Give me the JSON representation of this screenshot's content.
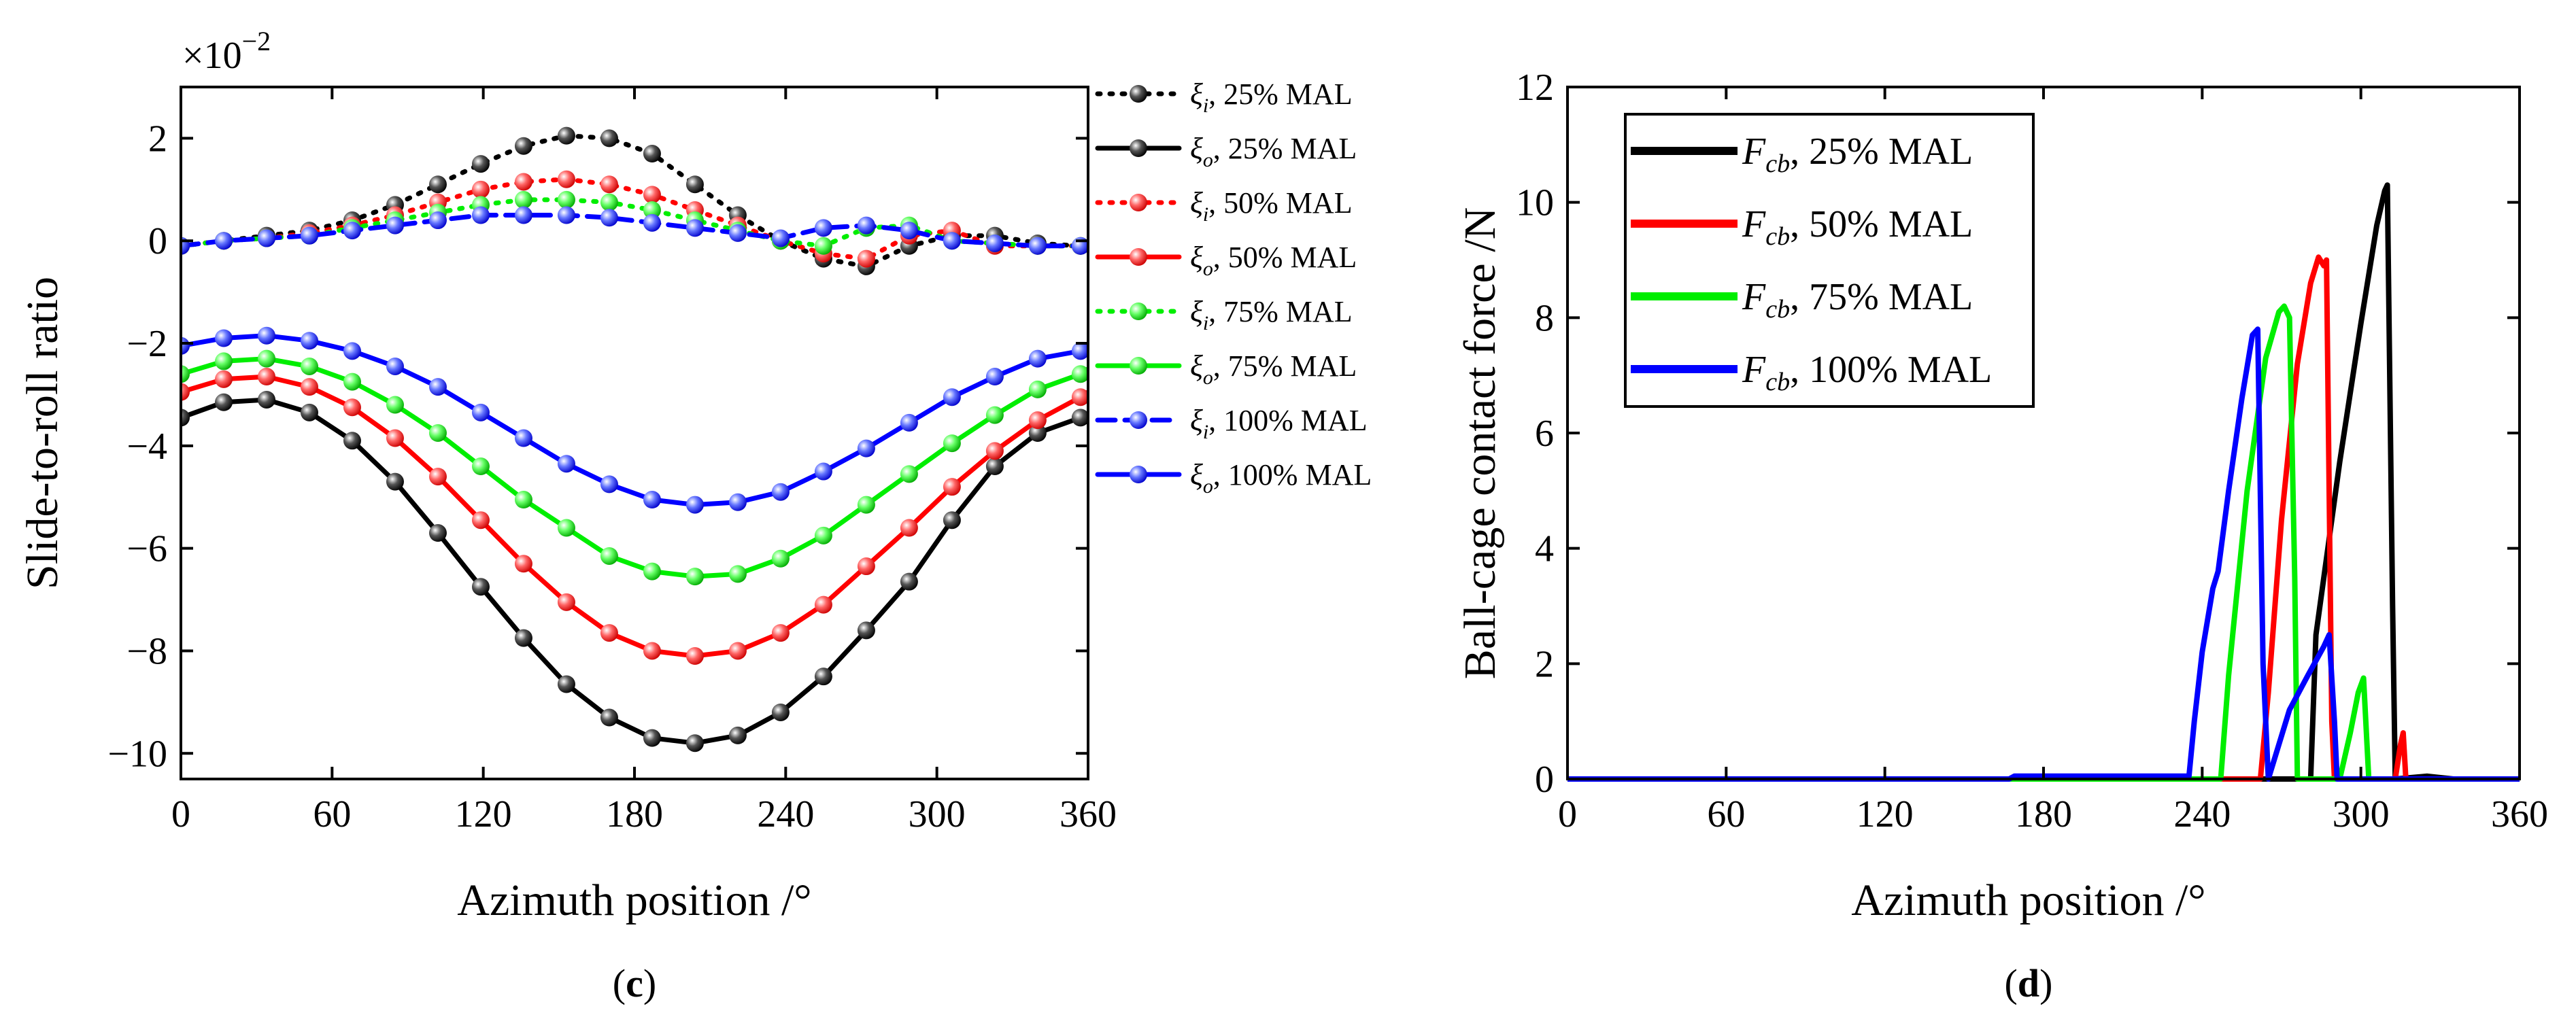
{
  "figure": {
    "panels": [
      {
        "label_prefix": "(",
        "label_letter": "c",
        "label_suffix": ")"
      },
      {
        "label_prefix": "(",
        "label_letter": "d",
        "label_suffix": ")"
      }
    ]
  },
  "colors": {
    "black": "#000000",
    "red": "#ff0000",
    "green": "#00ee00",
    "blue": "#0000ff"
  },
  "chart_data": [
    {
      "id": "c",
      "type": "line",
      "title": "",
      "xlabel": "Azimuth position /°",
      "ylabel": "Slide-to-roll ratio",
      "y_multiplier": "×10",
      "y_multiplier_exp": "−2",
      "xlim": [
        0,
        360
      ],
      "ylim": [
        -10.5,
        3
      ],
      "xticks": [
        0,
        60,
        120,
        180,
        240,
        300,
        360
      ],
      "xtick_labels": [
        "0",
        "60",
        "120",
        "180",
        "240",
        "300",
        "360"
      ],
      "yticks": [
        -10,
        -8,
        -6,
        -4,
        -2,
        0,
        2
      ],
      "ytick_labels": [
        "−10",
        "−8",
        "−6",
        "−4",
        "−2",
        "0",
        "2"
      ],
      "legend_position": "outside-right",
      "x": [
        0,
        17,
        34,
        51,
        68,
        85,
        102,
        119,
        136,
        153,
        170,
        187,
        204,
        221,
        238,
        255,
        272,
        289,
        306,
        323,
        340,
        357,
        360
      ],
      "series": [
        {
          "name": "ξi, 25% MAL",
          "sym": "ξ",
          "sub": "i",
          "suffix": ", 25% MAL",
          "color": "black",
          "style": "dotted",
          "values": [
            -0.1,
            0.0,
            0.1,
            0.2,
            0.4,
            0.7,
            1.1,
            1.5,
            1.85,
            2.05,
            2.0,
            1.7,
            1.1,
            0.5,
            0.0,
            -0.35,
            -0.5,
            -0.1,
            0.1,
            0.1,
            -0.05,
            -0.1,
            -0.1
          ]
        },
        {
          "name": "ξo, 25% MAL",
          "sym": "ξ",
          "sub": "o",
          "suffix": ", 25% MAL",
          "color": "black",
          "style": "solid",
          "values": [
            -3.45,
            -3.15,
            -3.1,
            -3.35,
            -3.9,
            -4.7,
            -5.7,
            -6.75,
            -7.75,
            -8.65,
            -9.3,
            -9.7,
            -9.8,
            -9.65,
            -9.2,
            -8.5,
            -7.6,
            -6.65,
            -5.45,
            -4.4,
            -3.75,
            -3.45,
            -3.4
          ]
        },
        {
          "name": "ξi, 50% MAL",
          "sym": "ξ",
          "sub": "i",
          "suffix": ", 50% MAL",
          "color": "red",
          "style": "dotted",
          "values": [
            -0.1,
            0.0,
            0.05,
            0.15,
            0.3,
            0.5,
            0.75,
            1.0,
            1.15,
            1.2,
            1.1,
            0.9,
            0.6,
            0.3,
            0.0,
            -0.25,
            -0.35,
            0.1,
            0.2,
            -0.1,
            -0.1,
            -0.1,
            -0.1
          ]
        },
        {
          "name": "ξo, 50% MAL",
          "sym": "ξ",
          "sub": "o",
          "suffix": ", 50% MAL",
          "color": "red",
          "style": "solid",
          "values": [
            -2.95,
            -2.7,
            -2.65,
            -2.85,
            -3.25,
            -3.85,
            -4.6,
            -5.45,
            -6.3,
            -7.05,
            -7.65,
            -8.0,
            -8.1,
            -8.0,
            -7.65,
            -7.1,
            -6.35,
            -5.6,
            -4.8,
            -4.1,
            -3.5,
            -3.05,
            -2.95
          ]
        },
        {
          "name": "ξi, 75% MAL",
          "sym": "ξ",
          "sub": "i",
          "suffix": ", 75% MAL",
          "color": "green",
          "style": "dotted",
          "values": [
            -0.1,
            0.0,
            0.05,
            0.1,
            0.25,
            0.4,
            0.55,
            0.7,
            0.8,
            0.8,
            0.75,
            0.6,
            0.4,
            0.2,
            0.0,
            -0.1,
            0.25,
            0.3,
            0.0,
            -0.05,
            -0.1,
            -0.1,
            -0.1
          ]
        },
        {
          "name": "ξo, 75% MAL",
          "sym": "ξ",
          "sub": "o",
          "suffix": ", 75% MAL",
          "color": "green",
          "style": "solid",
          "values": [
            -2.6,
            -2.35,
            -2.3,
            -2.45,
            -2.75,
            -3.2,
            -3.75,
            -4.4,
            -5.05,
            -5.6,
            -6.15,
            -6.45,
            -6.55,
            -6.5,
            -6.2,
            -5.75,
            -5.15,
            -4.55,
            -3.95,
            -3.4,
            -2.9,
            -2.6,
            -2.5
          ]
        },
        {
          "name": "ξi, 100% MAL",
          "sym": "ξ",
          "sub": "i",
          "suffix": ", 100% MAL",
          "color": "blue",
          "style": "dashed",
          "values": [
            -0.1,
            0.0,
            0.05,
            0.1,
            0.2,
            0.3,
            0.4,
            0.5,
            0.5,
            0.5,
            0.45,
            0.35,
            0.25,
            0.15,
            0.05,
            0.25,
            0.3,
            0.2,
            0.0,
            -0.05,
            -0.1,
            -0.1,
            -0.1
          ]
        },
        {
          "name": "ξo, 100% MAL",
          "sym": "ξ",
          "sub": "o",
          "suffix": ", 100% MAL",
          "color": "blue",
          "style": "solid",
          "values": [
            -2.05,
            -1.9,
            -1.85,
            -1.95,
            -2.15,
            -2.45,
            -2.85,
            -3.35,
            -3.85,
            -4.35,
            -4.75,
            -5.05,
            -5.15,
            -5.1,
            -4.9,
            -4.5,
            -4.05,
            -3.55,
            -3.05,
            -2.65,
            -2.3,
            -2.15,
            -2.1
          ]
        }
      ]
    },
    {
      "id": "d",
      "type": "line",
      "title": "",
      "xlabel": "Azimuth position /°",
      "ylabel": "Ball-cage contact force /N",
      "xlim": [
        0,
        360
      ],
      "ylim": [
        0,
        12
      ],
      "xticks": [
        0,
        60,
        120,
        180,
        240,
        300,
        360
      ],
      "xtick_labels": [
        "0",
        "60",
        "120",
        "180",
        "240",
        "300",
        "360"
      ],
      "yticks": [
        0,
        2,
        4,
        6,
        8,
        10,
        12
      ],
      "ytick_labels": [
        "0",
        "2",
        "4",
        "6",
        "8",
        "10",
        "12"
      ],
      "legend_position": "top-left",
      "series": [
        {
          "name": "Fcb, 25% MAL",
          "sym": "F",
          "sub": "cb",
          "suffix": ", 25% MAL",
          "color": "black",
          "x": [
            0,
            281,
            283,
            292,
            300,
            306,
            309,
            310,
            312,
            313,
            325,
            335,
            360
          ],
          "y": [
            0,
            0,
            2.5,
            5.5,
            7.9,
            9.6,
            10.2,
            10.3,
            3.0,
            0,
            0.05,
            0,
            0
          ]
        },
        {
          "name": "Fcb, 50% MAL",
          "sym": "F",
          "sub": "cb",
          "suffix": ", 50% MAL",
          "color": "red",
          "x": [
            0,
            262,
            265,
            270,
            276,
            281,
            284,
            286,
            287,
            289,
            290,
            313,
            315,
            316,
            317,
            325,
            360
          ],
          "y": [
            0,
            0,
            1.5,
            4.5,
            7.2,
            8.6,
            9.05,
            8.9,
            9.0,
            1.0,
            0,
            0,
            0.6,
            0.8,
            0,
            0,
            0
          ]
        },
        {
          "name": "Fcb, 75% MAL",
          "sym": "F",
          "sub": "cb",
          "suffix": ", 75% MAL",
          "color": "green",
          "x": [
            0,
            247,
            250,
            257,
            264,
            269,
            271,
            273,
            275,
            276,
            292,
            296,
            299,
            301,
            303,
            310,
            360
          ],
          "y": [
            0,
            0,
            1.8,
            5.0,
            7.3,
            8.1,
            8.2,
            8.0,
            3.5,
            0,
            0,
            0.8,
            1.5,
            1.75,
            0,
            0,
            0
          ]
        },
        {
          "name": "Fcb, 100% MAL",
          "sym": "F",
          "sub": "cb",
          "suffix": ", 100% MAL",
          "color": "blue",
          "x": [
            0,
            167,
            169,
            235,
            237,
            240,
            244,
            246,
            250,
            255,
            259,
            261,
            263,
            265,
            273,
            280,
            286,
            288,
            290,
            291,
            292,
            296,
            360
          ],
          "y": [
            0,
            0,
            0.05,
            0.05,
            1.0,
            2.2,
            3.3,
            3.6,
            5.0,
            6.6,
            7.7,
            7.8,
            2.0,
            0,
            1.2,
            1.8,
            2.3,
            2.5,
            1.0,
            0,
            0,
            0,
            0
          ]
        }
      ]
    }
  ]
}
